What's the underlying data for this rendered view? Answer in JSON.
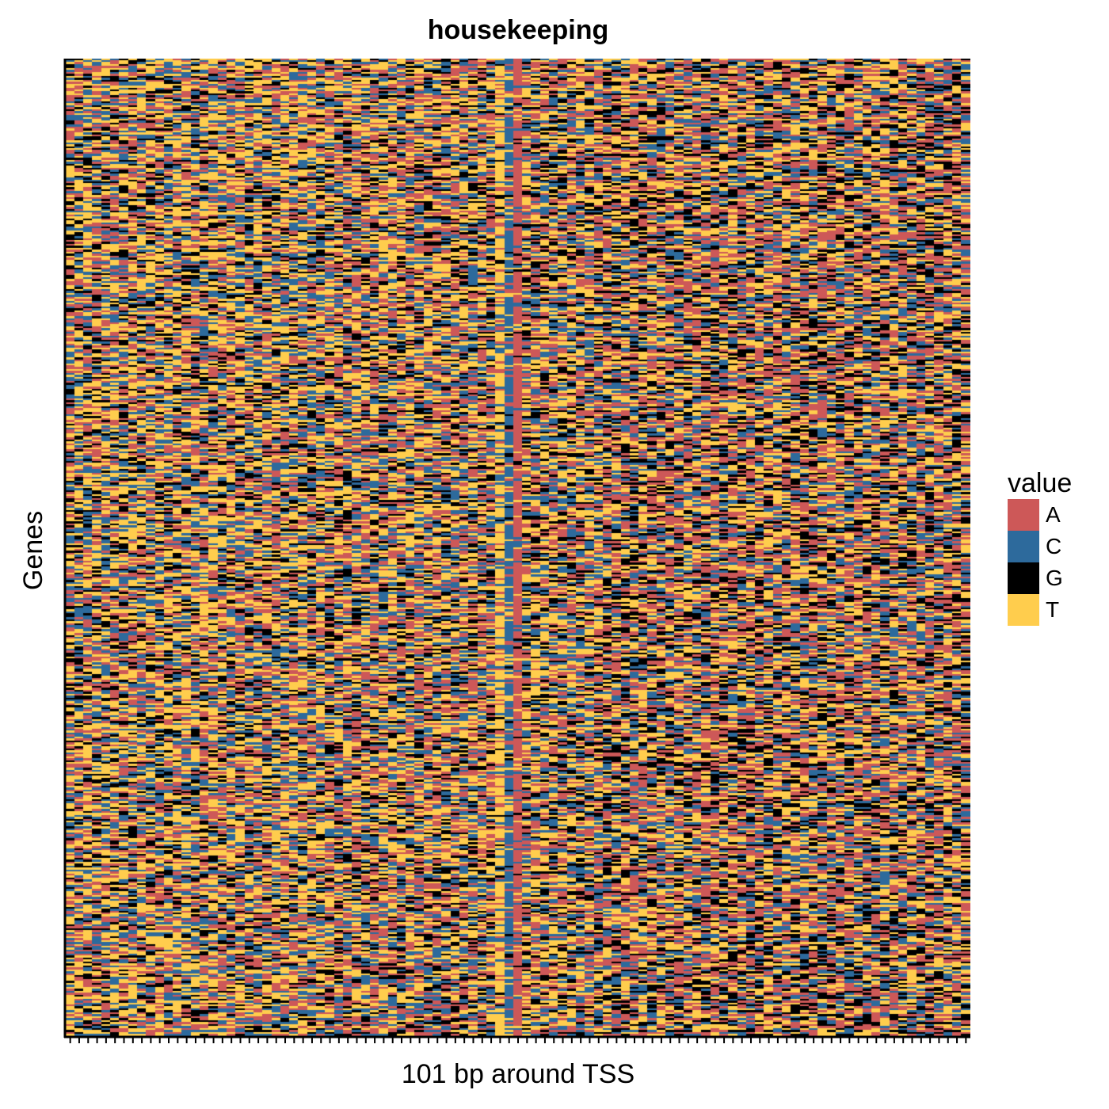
{
  "chart_data": {
    "type": "heatmap",
    "title": "housekeeping",
    "xlabel": "101 bp around TSS",
    "ylabel": "Genes",
    "x_positions": 101,
    "n_genes": 500,
    "x_tick_labels": "none",
    "y_tick_labels": "none",
    "legend": {
      "title": "value",
      "placement": "right",
      "entries": [
        {
          "label": "A",
          "color": "#CD5858"
        },
        {
          "label": "C",
          "color": "#2D6A9C"
        },
        {
          "label": "G",
          "color": "#000000"
        },
        {
          "label": "T",
          "color": "#FFCD4D"
        }
      ]
    },
    "column_features": {
      "tss_position": 51,
      "note_A_enriched_column": 51,
      "note_C_enriched_column": 50,
      "note_T_enriched_column": 49
    },
    "cells": "per-gene nucleotide identity at each of 101 positions (random-looking pattern, not individually legible)"
  }
}
